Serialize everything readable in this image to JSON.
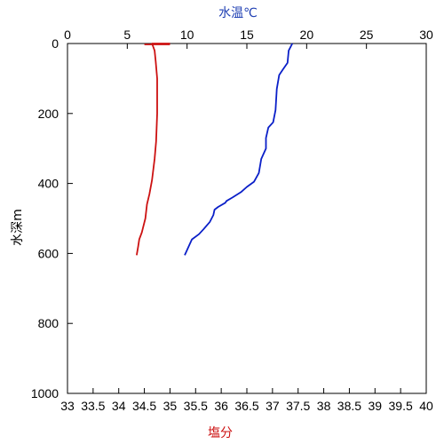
{
  "chart_data": {
    "type": "line",
    "title": "",
    "y": {
      "label": "水深m",
      "range": [
        0,
        1000
      ],
      "ticks": [
        0,
        200,
        400,
        600,
        800,
        1000
      ],
      "inverted": true
    },
    "x_top": {
      "label": "水温℃",
      "range": [
        0,
        30
      ],
      "ticks": [
        0,
        5,
        10,
        15,
        20,
        25,
        30
      ]
    },
    "x_bottom": {
      "label": "塩分",
      "range": [
        33,
        40
      ],
      "ticks": [
        33,
        33.5,
        34,
        34.5,
        35,
        35.5,
        36,
        36.5,
        37,
        37.5,
        38,
        38.5,
        39,
        39.5,
        40
      ]
    },
    "grid": false,
    "series": [
      {
        "axis": "top",
        "color": "#0a1fc8",
        "points": [
          {
            "x": 18.8,
            "y": 0
          },
          {
            "x": 18.5,
            "y": 20
          },
          {
            "x": 18.4,
            "y": 55
          },
          {
            "x": 18.0,
            "y": 75
          },
          {
            "x": 17.7,
            "y": 90
          },
          {
            "x": 17.5,
            "y": 130
          },
          {
            "x": 17.4,
            "y": 190
          },
          {
            "x": 17.2,
            "y": 225
          },
          {
            "x": 16.8,
            "y": 240
          },
          {
            "x": 16.6,
            "y": 270
          },
          {
            "x": 16.6,
            "y": 300
          },
          {
            "x": 16.2,
            "y": 330
          },
          {
            "x": 16.0,
            "y": 370
          },
          {
            "x": 15.6,
            "y": 395
          },
          {
            "x": 15.0,
            "y": 410
          },
          {
            "x": 14.5,
            "y": 425
          },
          {
            "x": 13.8,
            "y": 440
          },
          {
            "x": 13.3,
            "y": 450
          },
          {
            "x": 13.2,
            "y": 455
          },
          {
            "x": 12.6,
            "y": 467
          },
          {
            "x": 12.3,
            "y": 475
          },
          {
            "x": 12.2,
            "y": 490
          },
          {
            "x": 11.9,
            "y": 510
          },
          {
            "x": 11.4,
            "y": 530
          },
          {
            "x": 11.0,
            "y": 545
          },
          {
            "x": 10.4,
            "y": 560
          },
          {
            "x": 10.2,
            "y": 575
          },
          {
            "x": 10.0,
            "y": 590
          },
          {
            "x": 9.8,
            "y": 605
          }
        ]
      },
      {
        "axis": "bottom",
        "color": "#cc1111",
        "points": [
          {
            "x": 35.0,
            "y": 0
          },
          {
            "x": 34.65,
            "y": 0
          },
          {
            "x": 34.7,
            "y": 20
          },
          {
            "x": 34.72,
            "y": 50
          },
          {
            "x": 34.75,
            "y": 100
          },
          {
            "x": 34.75,
            "y": 200
          },
          {
            "x": 34.73,
            "y": 280
          },
          {
            "x": 34.7,
            "y": 330
          },
          {
            "x": 34.65,
            "y": 390
          },
          {
            "x": 34.6,
            "y": 430
          },
          {
            "x": 34.55,
            "y": 460
          },
          {
            "x": 34.52,
            "y": 500
          },
          {
            "x": 34.45,
            "y": 540
          },
          {
            "x": 34.4,
            "y": 560
          },
          {
            "x": 34.38,
            "y": 580
          },
          {
            "x": 34.35,
            "y": 605
          }
        ]
      }
    ],
    "start_segment": {
      "axis": "bottom",
      "x0": 34.5,
      "x1": 35.0,
      "y": 0
    }
  }
}
